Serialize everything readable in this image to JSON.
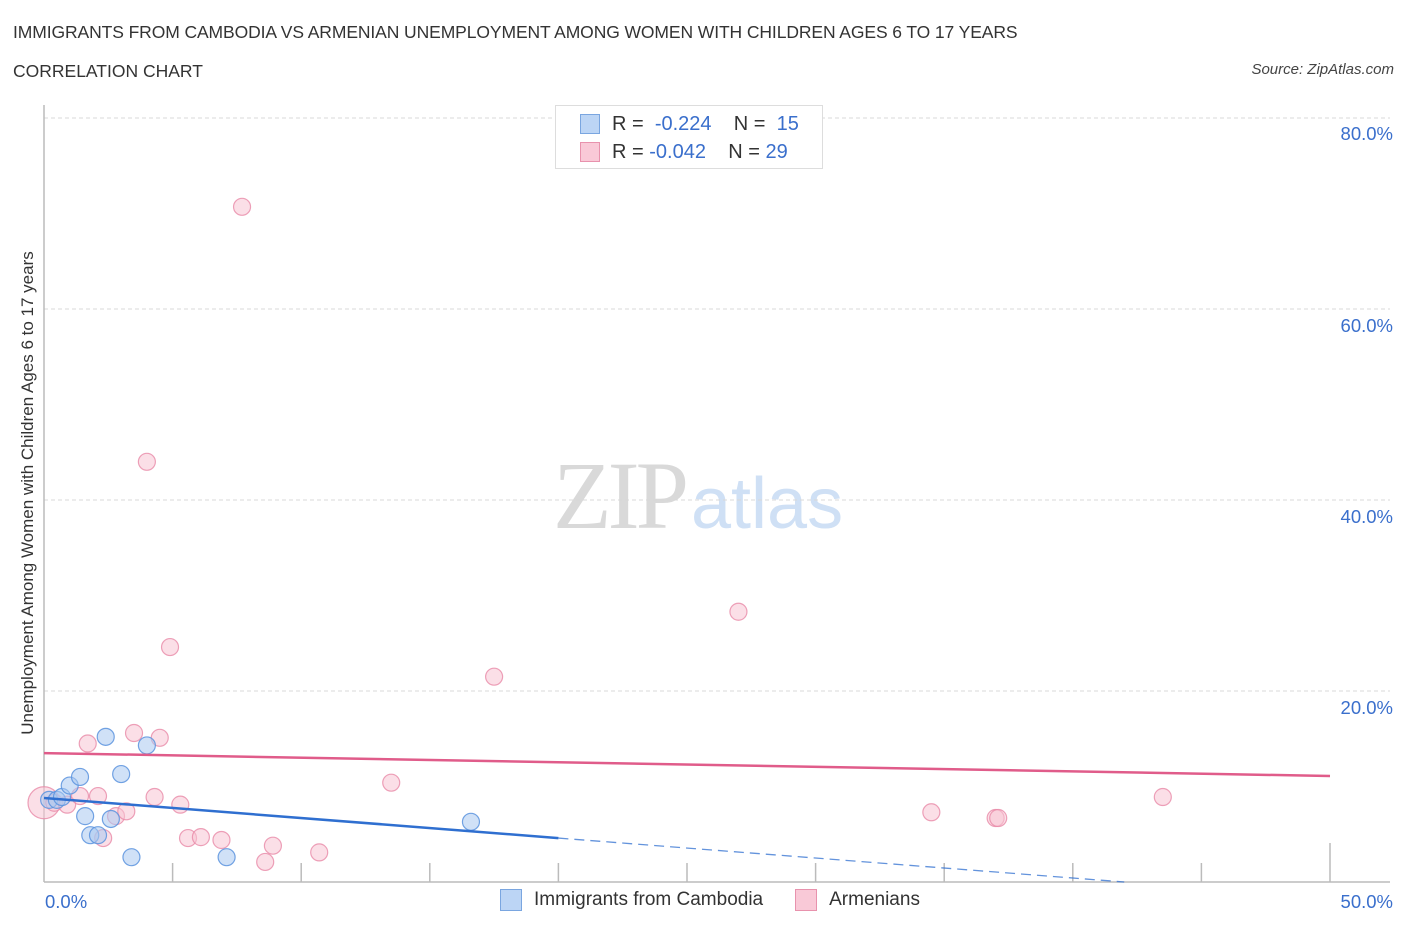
{
  "header": {
    "title": "IMMIGRANTS FROM CAMBODIA VS ARMENIAN UNEMPLOYMENT AMONG WOMEN WITH CHILDREN AGES 6 TO 17 YEARS",
    "subtitle": "CORRELATION CHART",
    "source": "Source: ZipAtlas.com"
  },
  "watermark": {
    "zip": "ZIP",
    "atlas": "atlas"
  },
  "legend": {
    "rows": [
      {
        "r_label": "R =",
        "r_value": "-0.224",
        "n_label": "N =",
        "n_value": "15",
        "color": "#a9c8f0",
        "border": "#6fa0e0"
      },
      {
        "r_label": "R =",
        "r_value": "-0.042",
        "n_label": "N =",
        "n_value": "29",
        "color": "#f8c4d4",
        "border": "#e88aa8"
      }
    ]
  },
  "bottom_legend": {
    "items": [
      {
        "label": "Immigrants from Cambodia",
        "color": "#bcd5f5",
        "border": "#7aa6e0"
      },
      {
        "label": "Armenians",
        "color": "#f9c9d7",
        "border": "#e892ad"
      }
    ]
  },
  "axes": {
    "ylabel": "Unemployment Among Women with Children Ages 6 to 17 years",
    "x_tick_left": "0.0%",
    "x_tick_right": "50.0%",
    "y_ticks": [
      "80.0%",
      "60.0%",
      "40.0%",
      "20.0%"
    ]
  },
  "colors": {
    "blue_fill": "#a9c8f0",
    "blue_stroke": "#5b93de",
    "blue_line": "#2f6fd0",
    "pink_fill": "#f8c4d4",
    "pink_stroke": "#e88aa8",
    "pink_line": "#e05c8a",
    "grid": "#d8d8d8",
    "axis": "#bbbbbb",
    "tick_label": "#3a6fcc"
  },
  "chart_data": {
    "type": "scatter",
    "title": "IMMIGRANTS FROM CAMBODIA VS ARMENIAN UNEMPLOYMENT AMONG WOMEN WITH CHILDREN AGES 6 TO 17 YEARS",
    "subtitle": "CORRELATION CHART",
    "xlabel": "",
    "ylabel": "Unemployment Among Women with Children Ages 6 to 17 years",
    "xlim": [
      0,
      50
    ],
    "ylim": [
      0,
      80
    ],
    "x_ticks_labeled": [
      "0.0%",
      "50.0%"
    ],
    "y_ticks_labeled": [
      "20.0%",
      "40.0%",
      "60.0%",
      "80.0%"
    ],
    "grid": "horizontal dashed",
    "legend_position": "top-center and bottom",
    "series": [
      {
        "name": "Immigrants from Cambodia",
        "R": -0.224,
        "N": 15,
        "color": "#a9c8f0",
        "points": [
          [
            0.2,
            8.6
          ],
          [
            0.5,
            8.6
          ],
          [
            0.7,
            8.9
          ],
          [
            1.0,
            10.1
          ],
          [
            1.4,
            11.0
          ],
          [
            1.6,
            6.9
          ],
          [
            1.8,
            4.9
          ],
          [
            2.1,
            4.9
          ],
          [
            2.4,
            15.2
          ],
          [
            2.6,
            6.6
          ],
          [
            3.0,
            11.3
          ],
          [
            3.4,
            2.6
          ],
          [
            4.0,
            14.3
          ],
          [
            7.1,
            2.6
          ],
          [
            16.6,
            6.3
          ]
        ],
        "trend": {
          "x": [
            0,
            20,
            42
          ],
          "y": [
            8.8,
            4.6,
            0.0
          ],
          "solid_until_x": 20
        }
      },
      {
        "name": "Armenians",
        "R": -0.042,
        "N": 29,
        "color": "#f8c4d4",
        "points": [
          [
            0.0,
            8.3
          ],
          [
            0.4,
            8.3
          ],
          [
            0.9,
            8.1
          ],
          [
            1.4,
            9.0
          ],
          [
            1.7,
            14.5
          ],
          [
            2.1,
            9.0
          ],
          [
            2.3,
            4.6
          ],
          [
            2.8,
            6.9
          ],
          [
            3.2,
            7.4
          ],
          [
            3.5,
            15.6
          ],
          [
            4.0,
            44.0
          ],
          [
            4.3,
            8.9
          ],
          [
            4.5,
            15.1
          ],
          [
            4.9,
            24.6
          ],
          [
            5.3,
            8.1
          ],
          [
            5.6,
            4.6
          ],
          [
            6.1,
            4.7
          ],
          [
            6.9,
            4.4
          ],
          [
            7.7,
            70.7
          ],
          [
            8.6,
            2.1
          ],
          [
            8.9,
            3.8
          ],
          [
            10.7,
            3.1
          ],
          [
            13.5,
            10.4
          ],
          [
            17.5,
            21.5
          ],
          [
            27.0,
            28.3
          ],
          [
            34.5,
            7.3
          ],
          [
            37.0,
            6.7
          ],
          [
            37.1,
            6.7
          ],
          [
            43.5,
            8.9
          ]
        ],
        "trend": {
          "x": [
            0,
            50
          ],
          "y": [
            13.5,
            11.1
          ]
        }
      }
    ]
  }
}
